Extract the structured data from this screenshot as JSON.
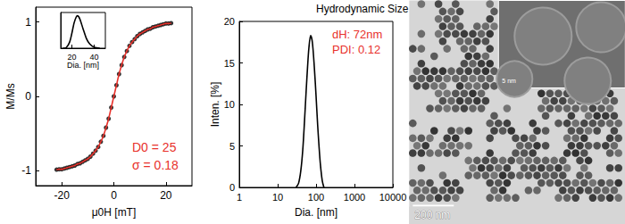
{
  "chart_data": [
    {
      "type": "line",
      "xlabel": "μ0H [mT]",
      "ylabel": "M/Ms",
      "x": [
        -22,
        -21,
        -20,
        -19,
        -18,
        -17,
        -16,
        -15,
        -14,
        -13,
        -12,
        -11,
        -10,
        -9,
        -8,
        -7,
        -6,
        -5,
        -4,
        -3,
        -2,
        -1,
        0,
        1,
        2,
        3,
        4,
        5,
        6,
        7,
        8,
        9,
        10,
        11,
        12,
        13,
        14,
        15,
        16,
        17,
        18,
        19,
        20,
        21,
        22
      ],
      "series": [
        {
          "type": "scatter",
          "color": "#000000",
          "marker": "circle",
          "values": [
            -0.985,
            -0.98,
            -0.98,
            -0.97,
            -0.96,
            -0.95,
            -0.94,
            -0.93,
            -0.91,
            -0.9,
            -0.88,
            -0.86,
            -0.84,
            -0.81,
            -0.77,
            -0.73,
            -0.68,
            -0.61,
            -0.53,
            -0.42,
            -0.3,
            -0.15,
            0,
            0.15,
            0.3,
            0.42,
            0.53,
            0.61,
            0.68,
            0.73,
            0.77,
            0.81,
            0.84,
            0.86,
            0.88,
            0.9,
            0.91,
            0.93,
            0.94,
            0.95,
            0.96,
            0.97,
            0.98,
            0.98,
            0.985
          ]
        },
        {
          "type": "line",
          "color": "#e8312b",
          "line_style": "solid",
          "values": [
            -0.985,
            -0.98,
            -0.98,
            -0.97,
            -0.96,
            -0.95,
            -0.94,
            -0.93,
            -0.91,
            -0.9,
            -0.88,
            -0.86,
            -0.84,
            -0.81,
            -0.77,
            -0.73,
            -0.68,
            -0.61,
            -0.53,
            -0.42,
            -0.3,
            -0.15,
            0,
            0.15,
            0.3,
            0.42,
            0.53,
            0.61,
            0.68,
            0.73,
            0.77,
            0.81,
            0.84,
            0.86,
            0.88,
            0.9,
            0.91,
            0.93,
            0.94,
            0.95,
            0.96,
            0.97,
            0.98,
            0.98,
            0.985
          ]
        }
      ],
      "xlim": [
        -30,
        30
      ],
      "xticks": [
        -20,
        0,
        20
      ],
      "ylim": [
        -1.2,
        1.2
      ],
      "yticks": [
        -1,
        0,
        1
      ],
      "annotations": [
        "D0 = 25",
        "σ = 0.18"
      ],
      "grid": false
    },
    {
      "type": "line",
      "xlabel": "Dia. [nm]",
      "x": [
        12,
        15,
        18,
        20,
        22,
        24,
        25,
        27,
        30,
        33,
        36,
        40,
        45
      ],
      "values": [
        0.0,
        0.02,
        0.19,
        0.46,
        0.78,
        0.97,
        1.0,
        0.91,
        0.6,
        0.3,
        0.13,
        0.03,
        0.0
      ],
      "color": "#000000",
      "xlim": [
        10,
        50
      ],
      "xticks": [
        20,
        40
      ],
      "ylim": [
        0,
        1.1
      ],
      "tick_labels": "x",
      "grid": false
    },
    {
      "type": "line",
      "title": "Hydrodynamic Size (DLS)",
      "xlabel": "Dia. [nm]",
      "ylabel": "Inten. [%]",
      "x": [
        30,
        35,
        40,
        45,
        50,
        55,
        60,
        65,
        72,
        80,
        90,
        100,
        110,
        120,
        130,
        145,
        160
      ],
      "values": [
        0,
        0.5,
        2,
        4.5,
        8,
        11.5,
        14.5,
        16.8,
        18.3,
        17.5,
        14.5,
        11,
        7.5,
        4.8,
        2.7,
        0.8,
        0
      ],
      "color": "#000000",
      "log": "x",
      "xlim": [
        1,
        10000
      ],
      "xticks": [
        1,
        10,
        100,
        1000,
        10000
      ],
      "ylim": [
        0,
        20
      ],
      "yticks": [
        0,
        5,
        10,
        15,
        20
      ],
      "annotations": [
        "dH: 72nm",
        "PDI: 0.12"
      ],
      "grid": false
    },
    {
      "type": "image",
      "annotations": [
        "200 nm",
        "5 nm"
      ]
    }
  ]
}
